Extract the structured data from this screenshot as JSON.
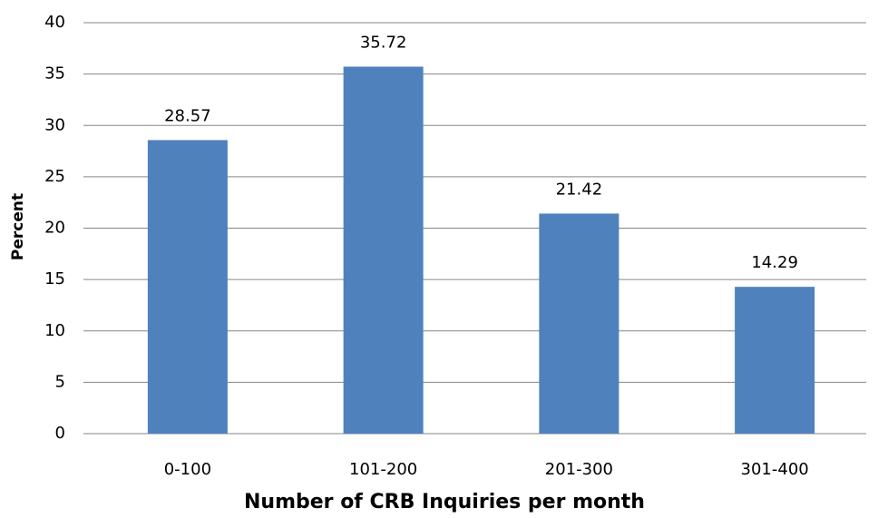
{
  "chart_data": {
    "type": "bar",
    "xlabel": "Number of CRB Inquiries per month",
    "ylabel": "Percent",
    "categories": [
      "0-100",
      "101-200",
      "201-300",
      "301-400"
    ],
    "values": [
      28.57,
      35.72,
      21.42,
      14.29
    ],
    "color": "#4f81bd",
    "ylim": [
      0,
      40
    ],
    "yticks": [
      0,
      5,
      10,
      15,
      20,
      25,
      30,
      35,
      40
    ],
    "grid": true
  }
}
